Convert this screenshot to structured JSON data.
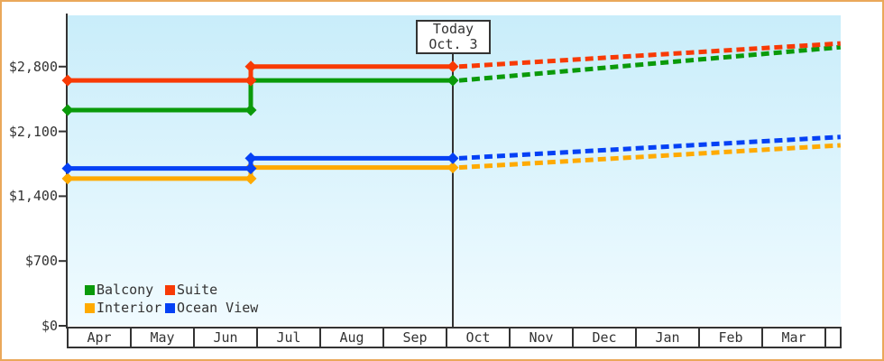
{
  "frame": {
    "border_color": "#EAA85A",
    "background": "#FFFFFF",
    "text_color": "#333333",
    "plot_gradient_top": "#C9EDFA",
    "plot_gradient_bottom": "#F0FBFF"
  },
  "chart_data": {
    "type": "line",
    "x_categories": [
      "Apr",
      "May",
      "Jun",
      "Jul",
      "Aug",
      "Sep",
      "Oct",
      "Nov",
      "Dec",
      "Jan",
      "Feb",
      "Mar"
    ],
    "y_ticks": [
      {
        "value": 0,
        "label": "$0"
      },
      {
        "value": 700,
        "label": "$700"
      },
      {
        "value": 1400,
        "label": "$1,400"
      },
      {
        "value": 2100,
        "label": "$2,100"
      },
      {
        "value": 2800,
        "label": "$2,800"
      }
    ],
    "y_axis_range": [
      0,
      3390
    ],
    "today_marker": {
      "line1": "Today",
      "line2": "Oct. 3",
      "month_position": 6.1
    },
    "series": [
      {
        "name": "Interior",
        "color": "#FFAA00",
        "history": [
          {
            "x_months": 0,
            "price": 1590
          },
          {
            "x_months": 2.9,
            "price": 1590
          },
          {
            "x_months": 2.9,
            "price": 1710
          },
          {
            "x_months": 6.1,
            "price": 1710
          }
        ],
        "forecast": [
          {
            "x_months": 6.1,
            "price": 1710
          },
          {
            "x_months": 12.24,
            "price": 1950
          }
        ]
      },
      {
        "name": "Ocean View",
        "color": "#0541F5",
        "history": [
          {
            "x_months": 0,
            "price": 1700
          },
          {
            "x_months": 2.9,
            "price": 1700
          },
          {
            "x_months": 2.9,
            "price": 1810
          },
          {
            "x_months": 6.1,
            "price": 1810
          }
        ],
        "forecast": [
          {
            "x_months": 6.1,
            "price": 1810
          },
          {
            "x_months": 12.24,
            "price": 2040
          }
        ]
      },
      {
        "name": "Balcony",
        "color": "#0A9A0A",
        "history": [
          {
            "x_months": 0,
            "price": 2330
          },
          {
            "x_months": 2.9,
            "price": 2330
          },
          {
            "x_months": 2.9,
            "price": 2650
          },
          {
            "x_months": 6.1,
            "price": 2650
          }
        ],
        "forecast": [
          {
            "x_months": 6.1,
            "price": 2650
          },
          {
            "x_months": 12.24,
            "price": 3010
          }
        ]
      },
      {
        "name": "Suite",
        "color": "#F83A05",
        "history": [
          {
            "x_months": 0,
            "price": 2650
          },
          {
            "x_months": 2.9,
            "price": 2650
          },
          {
            "x_months": 2.9,
            "price": 2800
          },
          {
            "x_months": 6.1,
            "price": 2800
          }
        ],
        "forecast": [
          {
            "x_months": 6.1,
            "price": 2800
          },
          {
            "x_months": 12.24,
            "price": 3050
          }
        ]
      }
    ],
    "legend": {
      "items": [
        {
          "label": "Balcony",
          "color": "#0A9A0A"
        },
        {
          "label": "Suite",
          "color": "#F83A05"
        },
        {
          "label": "Interior",
          "color": "#FFAA00"
        },
        {
          "label": "Ocean View",
          "color": "#0541F5"
        }
      ],
      "position": "bottom-left"
    }
  }
}
